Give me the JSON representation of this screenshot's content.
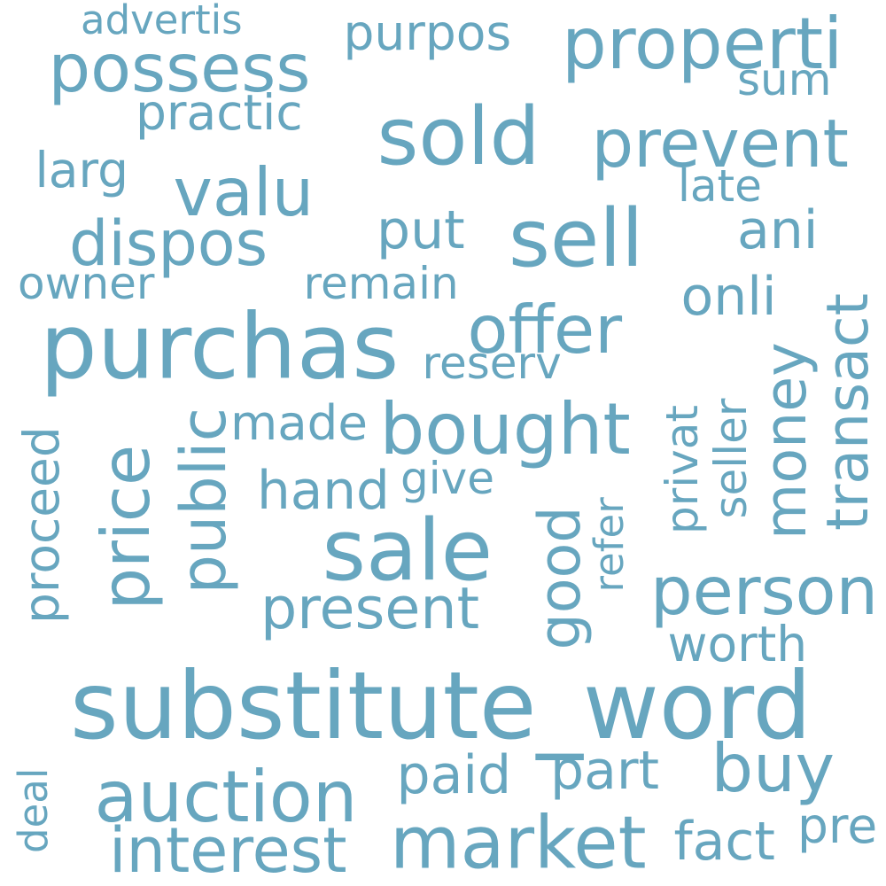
{
  "colors": {
    "background": "#ffffff",
    "text": "#67a6bf"
  },
  "words": [
    {
      "id": "substitute_word",
      "text": "substitute_word"
    },
    {
      "id": "purchas",
      "text": "purchas"
    },
    {
      "id": "sale",
      "text": "sale"
    },
    {
      "id": "price",
      "text": "price"
    },
    {
      "id": "sold",
      "text": "sold"
    },
    {
      "id": "sell",
      "text": "sell"
    },
    {
      "id": "market",
      "text": "market"
    },
    {
      "id": "auction",
      "text": "auction"
    },
    {
      "id": "possess",
      "text": "possess"
    },
    {
      "id": "properti",
      "text": "properti"
    },
    {
      "id": "prevent",
      "text": "prevent"
    },
    {
      "id": "valu",
      "text": "valu"
    },
    {
      "id": "dispos",
      "text": "dispos"
    },
    {
      "id": "offer",
      "text": "offer"
    },
    {
      "id": "bought",
      "text": "bought"
    },
    {
      "id": "interest",
      "text": "interest"
    },
    {
      "id": "buy",
      "text": "buy"
    },
    {
      "id": "person",
      "text": "person"
    },
    {
      "id": "public",
      "text": "public"
    },
    {
      "id": "transact",
      "text": "transact"
    },
    {
      "id": "money",
      "text": "money"
    },
    {
      "id": "good",
      "text": "good"
    },
    {
      "id": "ani",
      "text": "ani"
    },
    {
      "id": "onli",
      "text": "onli"
    },
    {
      "id": "present",
      "text": "present"
    },
    {
      "id": "hand",
      "text": "hand"
    },
    {
      "id": "paid",
      "text": "paid"
    },
    {
      "id": "part",
      "text": "part"
    },
    {
      "id": "fact",
      "text": "fact"
    },
    {
      "id": "worth",
      "text": "worth"
    },
    {
      "id": "proceed",
      "text": "proceed"
    },
    {
      "id": "practic",
      "text": "practic"
    },
    {
      "id": "purpos",
      "text": "purpos"
    },
    {
      "id": "put",
      "text": "put"
    },
    {
      "id": "made",
      "text": "made"
    },
    {
      "id": "larg",
      "text": "larg"
    },
    {
      "id": "remain",
      "text": "remain"
    },
    {
      "id": "reserv",
      "text": "reserv"
    },
    {
      "id": "privat",
      "text": "privat"
    },
    {
      "id": "seller",
      "text": "seller"
    },
    {
      "id": "refer",
      "text": "refer"
    },
    {
      "id": "give",
      "text": "give"
    },
    {
      "id": "advertis",
      "text": "advertis"
    },
    {
      "id": "owner",
      "text": "owner"
    },
    {
      "id": "sum",
      "text": "sum"
    },
    {
      "id": "late",
      "text": "late"
    },
    {
      "id": "deal",
      "text": "deal"
    },
    {
      "id": "pre",
      "text": "pre"
    }
  ]
}
